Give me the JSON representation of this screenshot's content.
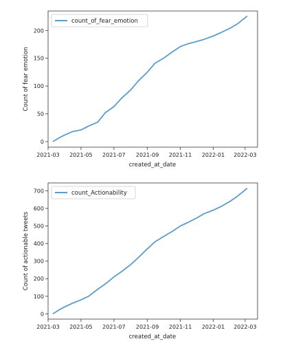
{
  "chart_data": [
    {
      "type": "line",
      "xlabel": "created_at_date",
      "ylabel": "Count of fear emotion",
      "xlim": [
        "2021-03-01",
        "2022-03-24"
      ],
      "ylim": [
        -10,
        235
      ],
      "xticks": [
        "2021-03",
        "2021-05",
        "2021-07",
        "2021-09",
        "2021-11",
        "2022-01",
        "2022-03"
      ],
      "yticks": [
        0,
        50,
        100,
        150,
        200
      ],
      "legend": "upper-left",
      "grid": false,
      "series": [
        {
          "name": "count_of_fear_emotion",
          "color": "#5b9bc8",
          "x": [
            "2021-03-10",
            "2021-03-20",
            "2021-04-01",
            "2021-04-15",
            "2021-05-01",
            "2021-05-15",
            "2021-06-01",
            "2021-06-15",
            "2021-07-01",
            "2021-07-15",
            "2021-08-01",
            "2021-08-15",
            "2021-09-01",
            "2021-09-15",
            "2021-10-01",
            "2021-10-15",
            "2021-11-01",
            "2021-11-15",
            "2021-12-01",
            "2021-12-15",
            "2022-01-01",
            "2022-01-15",
            "2022-02-01",
            "2022-02-15",
            "2022-03-05"
          ],
          "values": [
            0,
            6,
            12,
            18,
            21,
            28,
            35,
            52,
            63,
            78,
            93,
            109,
            125,
            141,
            150,
            160,
            171,
            176,
            180,
            184,
            190,
            196,
            204,
            212,
            226
          ]
        }
      ]
    },
    {
      "type": "line",
      "xlabel": "created_at_date",
      "ylabel": "Count of actionable tweets",
      "xlim": [
        "2021-03-01",
        "2022-03-24"
      ],
      "ylim": [
        -30,
        745
      ],
      "xticks": [
        "2021-03",
        "2021-05",
        "2021-07",
        "2021-09",
        "2021-11",
        "2022-01",
        "2022-03"
      ],
      "yticks": [
        0,
        100,
        200,
        300,
        400,
        500,
        600,
        700
      ],
      "legend": "upper-left",
      "grid": false,
      "series": [
        {
          "name": "count_Actionability",
          "color": "#5b9bc8",
          "x": [
            "2021-03-10",
            "2021-03-20",
            "2021-04-01",
            "2021-04-15",
            "2021-05-01",
            "2021-05-15",
            "2021-06-01",
            "2021-06-15",
            "2021-07-01",
            "2021-07-15",
            "2021-08-01",
            "2021-08-15",
            "2021-09-01",
            "2021-09-15",
            "2021-10-01",
            "2021-10-15",
            "2021-11-01",
            "2021-11-15",
            "2021-12-01",
            "2021-12-15",
            "2022-01-01",
            "2022-01-15",
            "2022-02-01",
            "2022-02-15",
            "2022-03-05"
          ],
          "values": [
            0,
            20,
            40,
            60,
            80,
            100,
            140,
            170,
            210,
            240,
            280,
            320,
            370,
            410,
            440,
            465,
            500,
            520,
            545,
            570,
            590,
            610,
            640,
            670,
            715
          ]
        }
      ]
    }
  ]
}
